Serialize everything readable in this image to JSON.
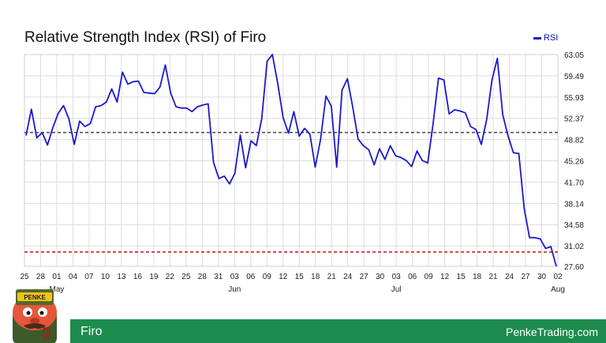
{
  "chart_data": {
    "type": "line",
    "title": "Relative Strength Index (RSI) of Firo",
    "legend": "top-right",
    "grid": true,
    "ylim": [
      27.6,
      63.05
    ],
    "y_ticks": [
      "63.05",
      "59.49",
      "55.93",
      "52.37",
      "48.82",
      "45.26",
      "41.70",
      "38.14",
      "34.58",
      "31.02",
      "27.60"
    ],
    "x_ticks": [
      "25",
      "28",
      "01",
      "04",
      "07",
      "10",
      "13",
      "16",
      "19",
      "22",
      "25",
      "28",
      "31",
      "03",
      "06",
      "09",
      "12",
      "15",
      "18",
      "21",
      "24",
      "27",
      "30",
      "03",
      "06",
      "09",
      "12",
      "15",
      "18",
      "21",
      "24",
      "27",
      "30",
      "02"
    ],
    "month_labels": [
      "May",
      "Jun",
      "Jul",
      "Aug"
    ],
    "reference_lines": [
      50,
      30
    ],
    "series": [
      {
        "name": "RSI",
        "color": "#1a1acc",
        "values": [
          49.5,
          53.9,
          49.1,
          50.0,
          47.9,
          50.8,
          53.2,
          54.5,
          52.3,
          48.0,
          51.9,
          51.0,
          51.5,
          54.3,
          54.5,
          55.1,
          57.3,
          55.1,
          60.1,
          58.1,
          58.5,
          58.6,
          56.7,
          56.6,
          56.5,
          57.6,
          61.3,
          56.6,
          54.3,
          54.1,
          54.1,
          53.5,
          54.3,
          54.6,
          54.8,
          45.0,
          42.3,
          42.7,
          41.4,
          43.2,
          49.6,
          44.1,
          48.6,
          47.8,
          52.3,
          61.9,
          63.05,
          58.2,
          52.5,
          49.9,
          53.5,
          49.4,
          50.7,
          49.7,
          44.2,
          48.9,
          56.1,
          54.4,
          44.2,
          57.1,
          59.0,
          54.2,
          48.9,
          47.8,
          47.1,
          44.6,
          47.3,
          45.5,
          47.8,
          46.1,
          45.8,
          45.3,
          44.3,
          46.9,
          45.3,
          44.9,
          51.5,
          59.1,
          58.8,
          53.1,
          53.8,
          53.6,
          53.3,
          51.0,
          50.5,
          48.0,
          52.2,
          58.8,
          62.4,
          53.0,
          49.4,
          46.6,
          46.5,
          37.3,
          32.4,
          32.4,
          32.2,
          30.6,
          30.9,
          27.6
        ]
      }
    ]
  },
  "footer": {
    "asset_name": "Firo",
    "site": "PenkeTrading.com",
    "logo_text": "PENKE"
  }
}
